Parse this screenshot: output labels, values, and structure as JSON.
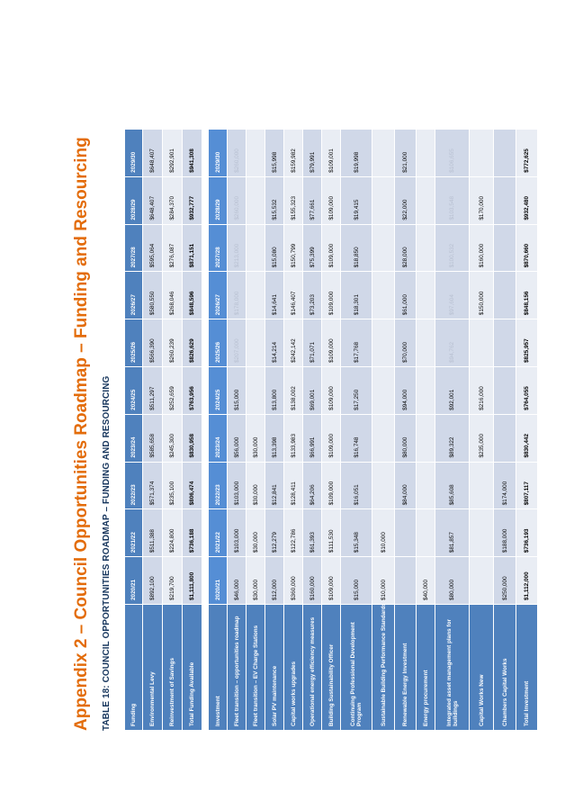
{
  "page": {
    "title": "Appendix 2 – Council Opportunities Roadmap – Funding and Resourcing",
    "caption": "TABLE 18: COUNCIL OPPORTUNITIES ROADMAP – FUNDING AND RESOURCING"
  },
  "years": [
    "2020/21",
    "2021/22",
    "2022/23",
    "2023/24",
    "2024/25",
    "2025/26",
    "2026/27",
    "2027/28",
    "2028/29",
    "2029/30"
  ],
  "funding": {
    "header": "Funding",
    "rows": [
      {
        "label": "Environmental Levy",
        "values": [
          "$892,100",
          "$511,388",
          "$571,374",
          "$585,658",
          "$511,297",
          "$566,390",
          "$580,550",
          "$595,064",
          "$648,407",
          "$648,407"
        ]
      },
      {
        "label": "Reinvestment of Savings",
        "values": [
          "$219,700",
          "$224,800",
          "$235,100",
          "$245,300",
          "$252,659",
          "$260,239",
          "$268,046",
          "$276,087",
          "$284,370",
          "$292,901"
        ]
      },
      {
        "label": "Total Funding Available",
        "values": [
          "$1,111,800",
          "$736,188",
          "$806,474",
          "$830,958",
          "$763,956",
          "$826,629",
          "$848,596",
          "$871,151",
          "$932,777",
          "$941,308"
        ]
      }
    ]
  },
  "investment": {
    "header": "Investment",
    "rows": [
      {
        "label": "Fleet transition – opportunities roadmap",
        "values": [
          "$46,000",
          "$103,000",
          "$103,000",
          "$56,000",
          "$15,000",
          "$207,000",
          "$178,000",
          "$213,000",
          "$260,000",
          "$260,000"
        ]
      },
      {
        "label": "Fleet transition – EV Charge Stations",
        "values": [
          "$30,000",
          "$30,000",
          "$30,000",
          "$30,000",
          "",
          "",
          "",
          "",
          "",
          ""
        ]
      },
      {
        "label": "Solar PV maintenance",
        "values": [
          "$12,000",
          "$12,279",
          "$12,841",
          "$13,398",
          "$13,800",
          "$14,214",
          "$14,641",
          "$15,080",
          "$15,532",
          "$15,998"
        ]
      },
      {
        "label": "Capital works upgrades",
        "values": [
          "$360,000",
          "$122,786",
          "$128,411",
          "$133,983",
          "$138,002",
          "$242,142",
          "$146,407",
          "$150,799",
          "$155,323",
          "$159,982"
        ]
      },
      {
        "label": "Operational energy efficiency measures",
        "values": [
          "$160,000",
          "$61,393",
          "$64,206",
          "$66,991",
          "$69,001",
          "$71,071",
          "$73,203",
          "$75,399",
          "$77,661",
          "$79,991"
        ]
      },
      {
        "label": "Building Sustainability Officer",
        "values": [
          "$109,000",
          "$111,530",
          "$109,000",
          "$109,000",
          "$109,000",
          "$109,000",
          "$109,000",
          "$109,000",
          "$109,000",
          "$109,001"
        ]
      },
      {
        "label": "Continuing Professional Development Program",
        "values": [
          "$15,000",
          "$15,348",
          "$16,051",
          "$16,748",
          "$17,250",
          "$17,768",
          "$18,301",
          "$18,850",
          "$19,415",
          "$19,998"
        ]
      },
      {
        "label": "Sustainable Building Performance Standards",
        "values": [
          "$10,000",
          "$10,000",
          "",
          "",
          "",
          "",
          "",
          "",
          "",
          ""
        ]
      },
      {
        "label": "Renewable Energy Investment",
        "values": [
          "",
          "",
          "$84,000",
          "$80,000",
          "$94,000",
          "$70,000",
          "$61,000",
          "$28,000",
          "$22,000",
          "$21,000"
        ]
      },
      {
        "label": "Energy procurement",
        "values": [
          "$40,000",
          "",
          "",
          "",
          "",
          "",
          "",
          "",
          "",
          ""
        ]
      },
      {
        "label": "Integrated asset management plans for buildings",
        "values": [
          "$80,000",
          "$81,857",
          "$85,608",
          "$89,322",
          "$92,001",
          "$94,762",
          "$97,604",
          "$100,532",
          "$103,548",
          "$106,655"
        ]
      },
      {
        "label": "Capital Works New",
        "values": [
          "",
          "",
          "",
          "$235,000",
          "$216,000",
          "",
          "$150,000",
          "$160,000",
          "$170,000",
          ""
        ]
      },
      {
        "label": "Chambers Capital Works",
        "values": [
          "$250,000",
          "$188,000",
          "$174,000",
          "",
          "",
          "",
          "",
          "",
          "",
          ""
        ]
      },
      {
        "label": "Total Investment",
        "values": [
          "$1,112,000",
          "$736,193",
          "$807,117",
          "$830,442",
          "$764,055",
          "$825,957",
          "$848,156",
          "$870,660",
          "$932,480",
          "$772,625"
        ]
      }
    ]
  }
}
